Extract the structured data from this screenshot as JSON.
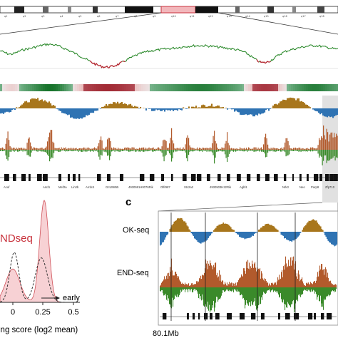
{
  "panel_c": {
    "letter": "c",
    "okseq_label": "OK-seq",
    "endseq_label": "END-seq",
    "position_label": "80.1Mb"
  },
  "panel_b": {
    "legend_label": "NDseq",
    "xaxis_ticks": [
      "0",
      "0.25",
      "0.5"
    ],
    "early_label": "early",
    "xlabel": "ing score (log2 mean)"
  },
  "gene_labels": [
    "Acuf",
    "Ascl1",
    "Mef2a",
    "Lin2b",
    "Arrdc4",
    "Gm29855",
    "4930591H0076Rik",
    "Olfr987",
    "Stc2a2",
    "4930503H22Rik",
    "Agbl1",
    "Nrk3",
    "Neo",
    "Parp8",
    "Zfp710"
  ],
  "colors": {
    "ideogram_highlight": "#c8323c",
    "replication_curve_green": "#2e8b2e",
    "replication_curve_red": "#b3262f",
    "okseq_brown": "#a8761c",
    "okseq_blue": "#2f73b3",
    "endseq_brown": "#b25a2c",
    "endseq_green": "#3a8a2a",
    "density_fill": "#f6c9cd",
    "panel_title_red": "#c8323c"
  }
}
